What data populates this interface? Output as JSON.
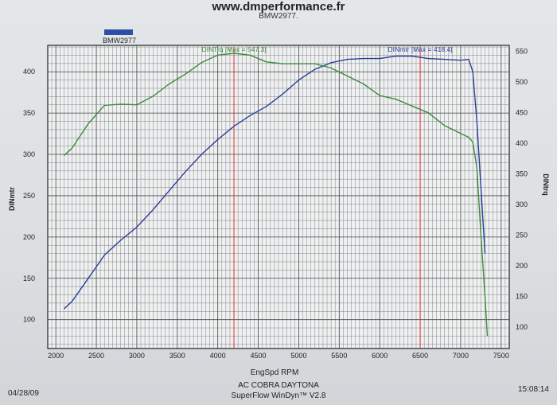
{
  "header": {
    "site": "www.dmperformance.fr",
    "subtitle": "BMW2977."
  },
  "legend": {
    "label": "BMW2977",
    "color": "#2b4fa6"
  },
  "footer": {
    "date": "04/28/09",
    "time": "15:08:14",
    "model": "AC COBRA DAYTONA",
    "software": "SuperFlow WinDyn™ V2.8"
  },
  "chart_data": {
    "type": "line",
    "xlabel": "EngSpd  RPM",
    "ylabel_left": "DINmtr",
    "ylabel_right": "DINtrq",
    "xlim": [
      1900,
      7600
    ],
    "ylim_left": [
      65,
      432
    ],
    "ylim_right": [
      65,
      560
    ],
    "x_ticks": [
      2000,
      2500,
      3000,
      3500,
      4000,
      4500,
      5000,
      5500,
      6000,
      6500,
      7000,
      7500
    ],
    "y_left_ticks": [
      100,
      150,
      200,
      250,
      300,
      350,
      400
    ],
    "y_right_ticks": [
      100,
      150,
      200,
      250,
      300,
      350,
      400,
      450,
      500,
      550
    ],
    "grid": true,
    "series": [
      {
        "name": "DINmtr",
        "axis": "left",
        "color": "#2b3f9a",
        "x": [
          2100,
          2200,
          2400,
          2600,
          2800,
          3000,
          3200,
          3400,
          3600,
          3800,
          4000,
          4200,
          4400,
          4600,
          4800,
          5000,
          5200,
          5400,
          5600,
          5800,
          6000,
          6200,
          6400,
          6600,
          6800,
          7000,
          7100,
          7150,
          7200,
          7250,
          7300
        ],
        "y": [
          113,
          122,
          150,
          178,
          196,
          212,
          233,
          256,
          279,
          300,
          318,
          334,
          347,
          358,
          373,
          390,
          403,
          411,
          415,
          416,
          416,
          419,
          419,
          416,
          415,
          414,
          415,
          400,
          340,
          260,
          180
        ]
      },
      {
        "name": "DINtrq",
        "axis": "right",
        "color": "#3d8a3d",
        "x": [
          2100,
          2200,
          2400,
          2600,
          2800,
          3000,
          3200,
          3400,
          3600,
          3800,
          4000,
          4200,
          4400,
          4600,
          4800,
          5000,
          5200,
          5400,
          5600,
          5800,
          6000,
          6200,
          6400,
          6600,
          6800,
          7000,
          7100,
          7150,
          7200,
          7250,
          7300,
          7330
        ],
        "y": [
          380,
          392,
          432,
          462,
          464,
          463,
          477,
          497,
          513,
          532,
          544,
          547,
          544,
          533,
          530,
          530,
          530,
          523,
          510,
          497,
          478,
          472,
          461,
          450,
          429,
          416,
          410,
          402,
          360,
          250,
          150,
          85
        ]
      }
    ],
    "markers": [
      {
        "x": 4200,
        "label": "DINTrq [Max = 547.3]",
        "color": "#3d8a3d"
      },
      {
        "x": 6500,
        "label": "DINmtr [Max = 418.4]",
        "color": "#2b3f9a"
      }
    ]
  }
}
